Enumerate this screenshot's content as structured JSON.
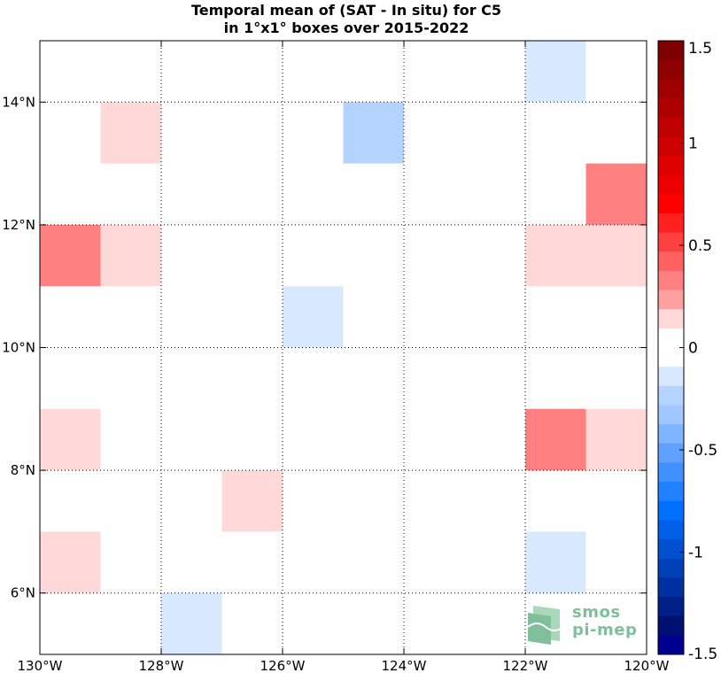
{
  "chart_data": {
    "type": "heatmap",
    "title_lines": [
      "Temporal mean of (SAT - In situ) for C5",
      "in 1°x1° boxes over 2015-2022"
    ],
    "xlabel": "",
    "ylabel": "",
    "xlim": [
      -130,
      -120
    ],
    "ylim": [
      5,
      15
    ],
    "x_ticks": [
      -130,
      -128,
      -126,
      -124,
      -122,
      -120
    ],
    "x_tick_labels": [
      "130°W",
      "128°W",
      "126°W",
      "124°W",
      "122°W",
      "120°W"
    ],
    "y_ticks": [
      6,
      8,
      10,
      12,
      14
    ],
    "y_tick_labels": [
      "6°N",
      "8°N",
      "10°N",
      "12°N",
      "14°N"
    ],
    "grid": true,
    "cells": [
      {
        "lon": -122,
        "lat": 14,
        "value": -0.1
      },
      {
        "lon": -129,
        "lat": 13,
        "value": 0.15
      },
      {
        "lon": -125,
        "lat": 13,
        "value": -0.25
      },
      {
        "lon": -121,
        "lat": 12,
        "value": 0.3
      },
      {
        "lon": -130,
        "lat": 11,
        "value": 0.3
      },
      {
        "lon": -129,
        "lat": 11,
        "value": 0.15
      },
      {
        "lon": -122,
        "lat": 11,
        "value": 0.15
      },
      {
        "lon": -121,
        "lat": 11,
        "value": 0.15
      },
      {
        "lon": -126,
        "lat": 10,
        "value": -0.1
      },
      {
        "lon": -130,
        "lat": 8,
        "value": 0.15
      },
      {
        "lon": -122,
        "lat": 8,
        "value": 0.3
      },
      {
        "lon": -121,
        "lat": 8,
        "value": 0.15
      },
      {
        "lon": -127,
        "lat": 7,
        "value": 0.15
      },
      {
        "lon": -130,
        "lat": 6,
        "value": 0.15
      },
      {
        "lon": -122,
        "lat": 6,
        "value": -0.1
      },
      {
        "lon": -128,
        "lat": 5,
        "value": -0.1
      }
    ],
    "colorbar": {
      "min": -1.5,
      "max": 1.5,
      "ticks": [
        1.5,
        1,
        0.5,
        0,
        -0.5,
        -1,
        -1.5
      ],
      "tick_labels": [
        "1.5",
        "1",
        "0.5",
        "0",
        "-0.5",
        "-1",
        "-1.5"
      ],
      "colors_top_to_bottom": [
        "#7f0000",
        "#8f0000",
        "#9f0000",
        "#af0000",
        "#bf0000",
        "#cf0000",
        "#df0000",
        "#ef0000",
        "#ff0000",
        "#ff2020",
        "#ff4040",
        "#ff6060",
        "#ff8080",
        "#ffa0a0",
        "#ffd8d8",
        "#ffffff",
        "#ffffff",
        "#d8e8ff",
        "#b4d4ff",
        "#a0c8ff",
        "#7fb4ff",
        "#60a0ff",
        "#4090ff",
        "#2080ff",
        "#0070ff",
        "#0060e8",
        "#0050d0",
        "#0040b8",
        "#0030a0",
        "#002088",
        "#001070",
        "#000090"
      ]
    }
  },
  "logo": {
    "line1": "smos",
    "line2": "pi-mep"
  },
  "colors": {
    "logo_green": "#7fbf9a"
  }
}
